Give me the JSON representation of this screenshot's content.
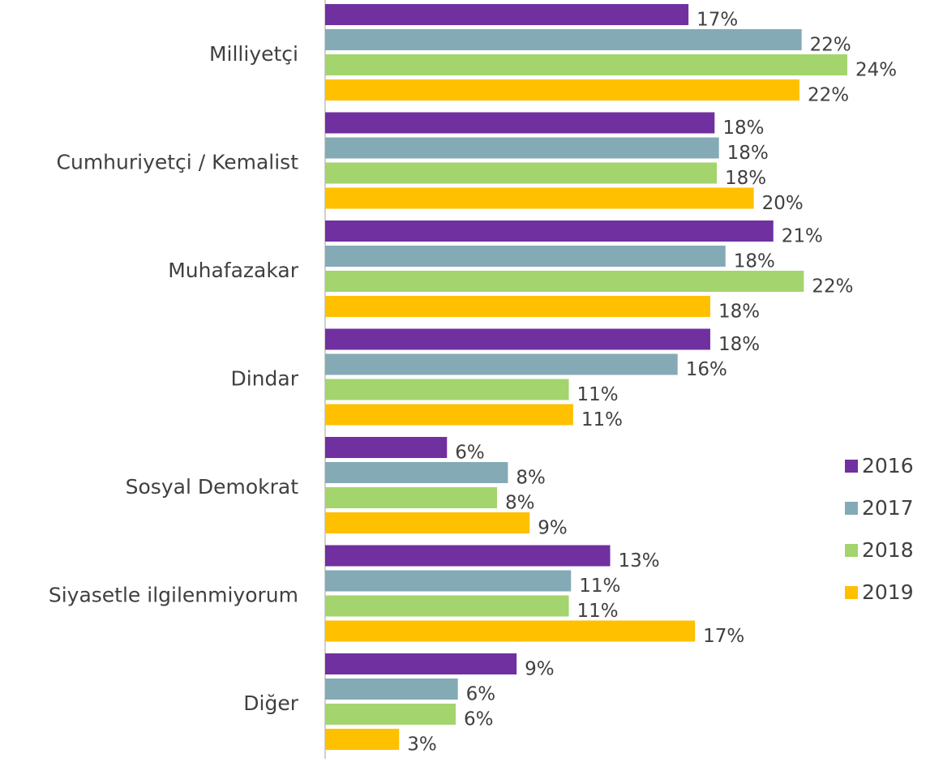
{
  "chart_data": {
    "type": "barh",
    "categories": [
      "Milliyetçi",
      "Cumhuriyetçi / Kemalist",
      "Muhafazakar",
      "Dindar",
      "Sosyal Demokrat",
      "Siyasetle ilgilenmiyorum",
      "Diğer"
    ],
    "series": [
      {
        "name": "2016",
        "color": "#7030a0",
        "values": [
          16.7,
          17.9,
          20.6,
          17.7,
          5.6,
          13.1,
          8.8
        ],
        "value_labels": [
          "17%",
          "18%",
          "21%",
          "18%",
          "6%",
          "13%",
          "9%"
        ]
      },
      {
        "name": "2017",
        "color": "#84aab5",
        "values": [
          21.9,
          18.1,
          18.4,
          16.2,
          8.4,
          11.3,
          6.1
        ],
        "value_labels": [
          "22%",
          "18%",
          "18%",
          "16%",
          "8%",
          "11%",
          "6%"
        ]
      },
      {
        "name": "2018",
        "color": "#a3d46d",
        "values": [
          24.0,
          18.0,
          22.0,
          11.2,
          7.9,
          11.2,
          6.0
        ],
        "value_labels": [
          "24%",
          "18%",
          "22%",
          "11%",
          "8%",
          "11%",
          "6%"
        ]
      },
      {
        "name": "2019",
        "color": "#ffc000",
        "values": [
          21.8,
          19.7,
          17.7,
          11.4,
          9.4,
          17.0,
          3.4
        ],
        "value_labels": [
          "22%",
          "20%",
          "18%",
          "11%",
          "9%",
          "17%",
          "3%"
        ]
      }
    ],
    "legend": "right"
  }
}
